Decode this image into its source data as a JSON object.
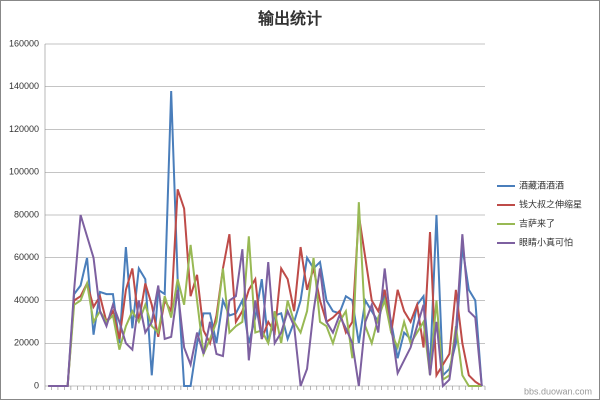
{
  "chart_data": {
    "type": "line",
    "title": "输出统计",
    "categories": [
      null,
      null,
      null,
      null,
      null,
      null,
      null,
      null,
      null,
      null,
      null,
      null,
      null,
      null,
      null,
      null,
      null,
      null,
      null,
      null,
      null,
      null,
      null,
      null,
      null,
      null,
      null,
      null,
      null,
      null,
      null,
      null,
      null,
      null,
      null,
      null,
      null,
      null,
      null,
      null,
      null,
      null,
      null,
      null,
      null,
      null,
      null,
      null,
      null,
      null,
      null,
      null,
      null,
      null,
      null,
      null,
      null,
      null,
      null,
      null,
      null,
      null,
      null,
      null,
      null,
      null,
      null,
      null
    ],
    "series": [
      {
        "name": "酒藏酒酒酒",
        "color": "#4a7ebb",
        "values": [
          0,
          0,
          0,
          0,
          43000,
          47000,
          60000,
          24000,
          44000,
          43000,
          43000,
          20000,
          65000,
          27000,
          55000,
          50000,
          5000,
          45000,
          43000,
          138000,
          50000,
          0,
          0,
          20000,
          34000,
          34000,
          20000,
          40000,
          33000,
          34000,
          40000,
          20000,
          32000,
          50000,
          20000,
          33000,
          34000,
          22000,
          30000,
          40000,
          60000,
          55000,
          58000,
          40000,
          35000,
          34000,
          42000,
          40000,
          20000,
          40000,
          35000,
          30000,
          43000,
          30000,
          13000,
          25000,
          22000,
          38000,
          42000,
          8000,
          80000,
          5000,
          8000,
          20000,
          65000,
          45000,
          40000,
          0
        ]
      },
      {
        "name": "钱大叔之伸缩星",
        "color": "#be4b48",
        "values": [
          0,
          0,
          0,
          0,
          40000,
          42000,
          48000,
          37000,
          42000,
          30000,
          35000,
          22000,
          45000,
          55000,
          30000,
          48000,
          38000,
          23000,
          40000,
          35000,
          92000,
          83000,
          42000,
          52000,
          26000,
          20000,
          33000,
          55000,
          71000,
          30000,
          35000,
          45000,
          50000,
          22000,
          30000,
          25000,
          55000,
          50000,
          35000,
          65000,
          45000,
          55000,
          40000,
          30000,
          32000,
          35000,
          25000,
          30000,
          80000,
          60000,
          40000,
          35000,
          45000,
          25000,
          45000,
          35000,
          30000,
          38000,
          18000,
          72000,
          5000,
          10000,
          15000,
          45000,
          20000,
          5000,
          2000,
          0
        ]
      },
      {
        "name": "吉萨来了",
        "color": "#98b954",
        "values": [
          0,
          0,
          0,
          0,
          38000,
          40000,
          48000,
          30000,
          35000,
          30000,
          33000,
          17000,
          28000,
          35000,
          30000,
          38000,
          28000,
          25000,
          42000,
          32000,
          50000,
          38000,
          66000,
          40000,
          15000,
          22000,
          30000,
          55000,
          25000,
          28000,
          30000,
          70000,
          25000,
          26000,
          20000,
          35000,
          20000,
          40000,
          30000,
          25000,
          35000,
          60000,
          30000,
          28000,
          20000,
          30000,
          35000,
          13000,
          86000,
          28000,
          20000,
          32000,
          40000,
          25000,
          18000,
          30000,
          20000,
          25000,
          30000,
          5000,
          40000,
          3000,
          5000,
          28000,
          5000,
          0,
          0,
          0
        ]
      },
      {
        "name": "眼睛小真可怕",
        "color": "#7d60a0",
        "values": [
          0,
          0,
          0,
          0,
          45000,
          80000,
          70000,
          60000,
          35000,
          28000,
          38000,
          30000,
          20000,
          17000,
          40000,
          25000,
          30000,
          47000,
          22000,
          23000,
          45000,
          18000,
          10000,
          25000,
          15000,
          30000,
          15000,
          14000,
          40000,
          42000,
          64000,
          12000,
          40000,
          22000,
          58000,
          20000,
          25000,
          35000,
          28000,
          0,
          8000,
          35000,
          55000,
          30000,
          25000,
          33000,
          27000,
          20000,
          0,
          30000,
          38000,
          25000,
          55000,
          28000,
          6000,
          12000,
          18000,
          28000,
          38000,
          5000,
          30000,
          0,
          3000,
          25000,
          71000,
          35000,
          32000,
          0
        ]
      }
    ],
    "ylim": [
      0,
      160000
    ],
    "yticks": [
      0,
      20000,
      40000,
      60000,
      80000,
      100000,
      120000,
      140000,
      160000
    ],
    "grid": true,
    "legend": "right",
    "watermark": "bbs.duowan.com"
  }
}
